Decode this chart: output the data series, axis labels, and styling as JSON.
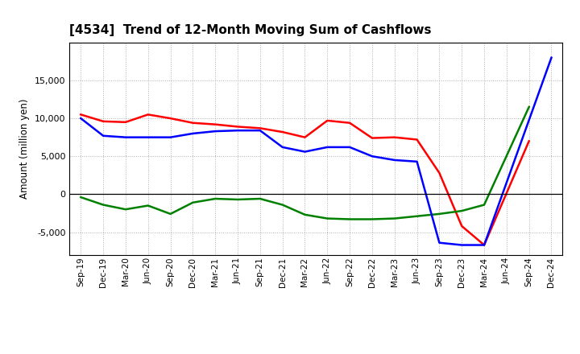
{
  "title": "[4534]  Trend of 12-Month Moving Sum of Cashflows",
  "ylabel": "Amount (million yen)",
  "x_labels": [
    "Sep-19",
    "Dec-19",
    "Mar-20",
    "Jun-20",
    "Sep-20",
    "Dec-20",
    "Mar-21",
    "Jun-21",
    "Sep-21",
    "Dec-21",
    "Mar-22",
    "Jun-22",
    "Sep-22",
    "Dec-22",
    "Mar-23",
    "Jun-23",
    "Sep-23",
    "Dec-23",
    "Mar-24",
    "Jun-24",
    "Sep-24",
    "Dec-24"
  ],
  "operating": [
    10500,
    9600,
    9500,
    10500,
    10000,
    9400,
    9200,
    8900,
    8700,
    8200,
    7500,
    9700,
    9400,
    7400,
    7500,
    7200,
    2800,
    -4200,
    -6700,
    null,
    7000,
    null
  ],
  "investing": [
    -400,
    -1400,
    -2000,
    -1500,
    -2600,
    -1100,
    -600,
    -700,
    -600,
    -1400,
    -2700,
    -3200,
    -3300,
    -3300,
    -3200,
    -2900,
    -2600,
    -2200,
    -1400,
    null,
    11500,
    null
  ],
  "free": [
    10000,
    7700,
    7500,
    7500,
    7500,
    8000,
    8300,
    8400,
    8400,
    6200,
    5600,
    6200,
    6200,
    5000,
    4500,
    4300,
    -6400,
    -6700,
    -6700,
    null,
    null,
    18000
  ],
  "operating_color": "#ff0000",
  "investing_color": "#008000",
  "free_color": "#0000ff",
  "ylim": [
    -8000,
    20000
  ],
  "yticks": [
    -5000,
    0,
    5000,
    10000,
    15000
  ],
  "background_color": "#ffffff",
  "grid_color": "#999999"
}
